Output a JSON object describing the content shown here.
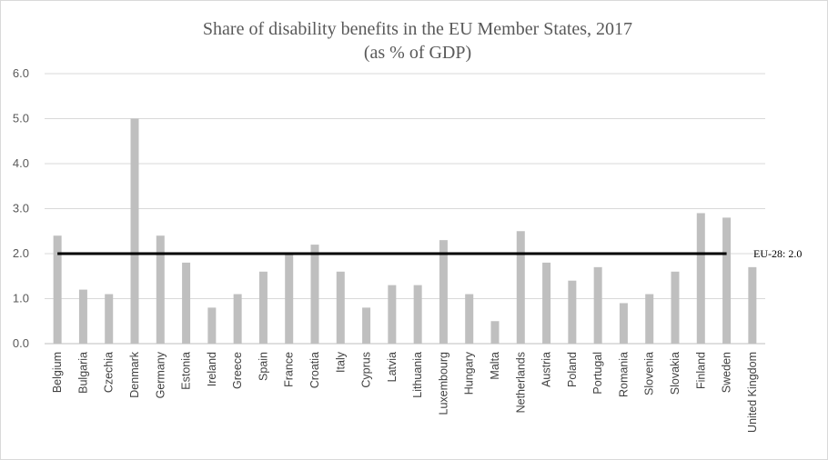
{
  "chart_data": {
    "type": "bar",
    "title": "Share of disability benefits in the EU Member States, 2017",
    "subtitle": "(as % of GDP)",
    "categories": [
      "Belgium",
      "Bulgaria",
      "Czechia",
      "Denmark",
      "Germany",
      "Estonia",
      "Ireland",
      "Greece",
      "Spain",
      "France",
      "Croatia",
      "Italy",
      "Cyprus",
      "Latvia",
      "Lithuania",
      "Luxembourg",
      "Hungary",
      "Malta",
      "Netherlands",
      "Austria",
      "Poland",
      "Portugal",
      "Romania",
      "Slovenia",
      "Slovakia",
      "Finland",
      "Sweden",
      "United Kingdom"
    ],
    "values": [
      2.4,
      1.2,
      1.1,
      5.0,
      2.4,
      1.8,
      0.8,
      1.1,
      1.6,
      2.0,
      2.2,
      1.6,
      0.8,
      1.3,
      1.3,
      2.3,
      1.1,
      0.5,
      2.5,
      1.8,
      1.4,
      1.7,
      0.9,
      1.1,
      1.6,
      2.9,
      2.8,
      1.7
    ],
    "ylim": [
      0,
      6
    ],
    "yticks": [
      "0.0",
      "1.0",
      "2.0",
      "3.0",
      "4.0",
      "5.0",
      "6.0"
    ],
    "grid": true,
    "reference_line": {
      "value": 2.0,
      "label": "EU-28: 2.0"
    },
    "colors": {
      "bar": "#bfbfbf",
      "reference": "#000000",
      "grid": "#d9d9d9",
      "axis": "#bfbfbf"
    }
  }
}
